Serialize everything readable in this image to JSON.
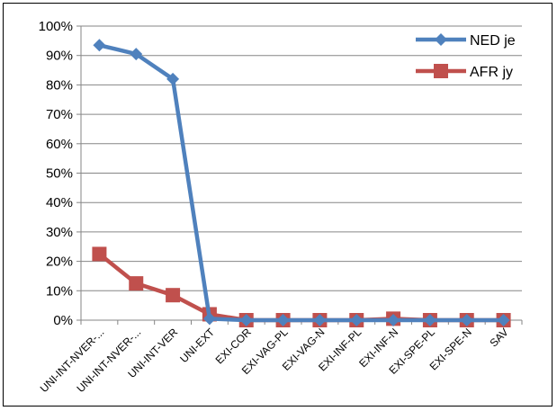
{
  "chart_data": {
    "type": "line",
    "categories": [
      "UNI-INT-NVER-...",
      "UNI-INT-NVER-...",
      "UNI-INT-VER",
      "UNI-EXT",
      "EXI-COR",
      "EXI-VAG-PL",
      "EXI-VAG-N",
      "EXI-INF-PL",
      "EXI-INF-N",
      "EXI-SPE-PL",
      "EXI-SPE-N",
      "SAV"
    ],
    "series": [
      {
        "name": "NED je",
        "color": "#4F81BD",
        "marker": "diamond",
        "values": [
          93.5,
          90.5,
          82,
          0.5,
          0,
          0,
          0,
          0,
          0,
          0,
          0,
          0
        ]
      },
      {
        "name": "AFR jy",
        "color": "#C0504D",
        "marker": "square",
        "values": [
          22.5,
          12.5,
          8.5,
          2,
          0,
          0,
          0,
          0,
          0.5,
          0,
          0,
          0
        ]
      }
    ],
    "ylim": [
      0,
      100
    ],
    "yticks": [
      0,
      10,
      20,
      30,
      40,
      50,
      60,
      70,
      80,
      90,
      100
    ],
    "ytick_labels": [
      "0%",
      "10%",
      "20%",
      "30%",
      "40%",
      "50%",
      "60%",
      "70%",
      "80%",
      "90%",
      "100%"
    ],
    "grid": "horizontal",
    "legend_position": "top-right",
    "title": "",
    "xlabel": "",
    "ylabel": ""
  }
}
